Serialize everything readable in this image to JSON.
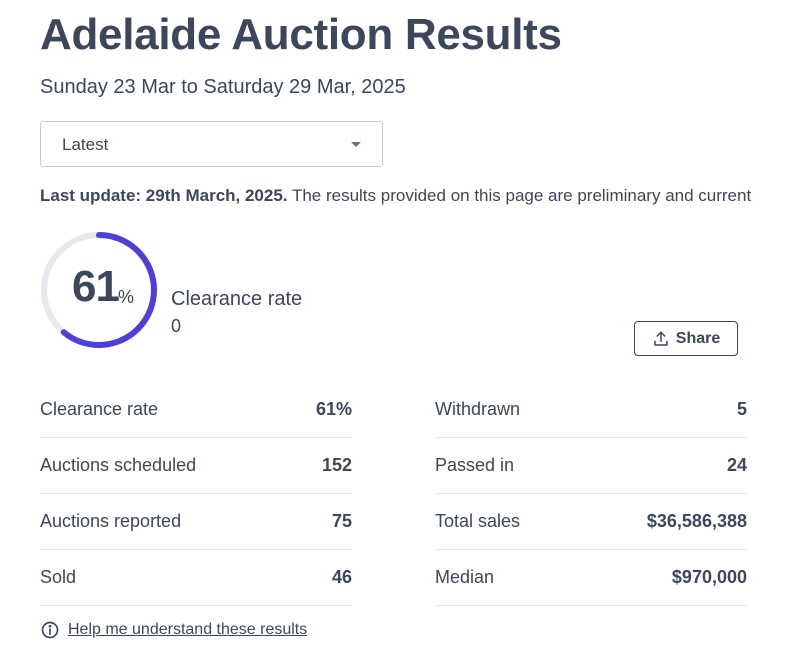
{
  "header": {
    "title": "Adelaide Auction Results",
    "date_range": "Sunday 23 Mar to Saturday 29 Mar, 2025"
  },
  "filter": {
    "selected": "Latest"
  },
  "update": {
    "label": "Last update: 29th March, 2025.",
    "text": " The results provided on this page are preliminary and current"
  },
  "gauge": {
    "value": "61",
    "unit": "%",
    "fraction": 0.61,
    "label": "Clearance rate",
    "sub": "0",
    "color": "#4e3fd9",
    "track_color": "#e6e9ee"
  },
  "share": {
    "label": "Share",
    "icon": "upload-icon"
  },
  "stats_left": [
    {
      "label": "Clearance rate",
      "value": "61%"
    },
    {
      "label": "Auctions scheduled",
      "value": "152"
    },
    {
      "label": "Auctions reported",
      "value": "75"
    },
    {
      "label": "Sold",
      "value": "46"
    }
  ],
  "stats_right": [
    {
      "label": "Withdrawn",
      "value": "5"
    },
    {
      "label": "Passed in",
      "value": "24"
    },
    {
      "label": "Total sales",
      "value": "$36,586,388"
    },
    {
      "label": "Median",
      "value": "$970,000"
    }
  ],
  "help": {
    "label": "Help me understand these results",
    "icon": "info-icon"
  }
}
